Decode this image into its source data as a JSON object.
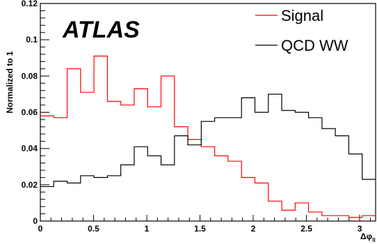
{
  "chart_data": {
    "type": "line",
    "title": "",
    "brand_label": "ATLAS",
    "xlabel": "Δφ_ll",
    "xlabel_main": "Δφ",
    "xlabel_sub": "ll",
    "ylabel": "Normalized to 1",
    "xlim": [
      0,
      3.15
    ],
    "ylim": [
      0,
      0.12
    ],
    "x_ticks": [
      "0",
      "0.5",
      "1",
      "1.5",
      "2",
      "2.5",
      "3"
    ],
    "x_tick_values": [
      0,
      0.5,
      1,
      1.5,
      2,
      2.5,
      3
    ],
    "y_ticks": [
      "0",
      "0.02",
      "0.04",
      "0.06",
      "0.08",
      "0.1",
      "0.12"
    ],
    "y_tick_values": [
      0,
      0.02,
      0.04,
      0.06,
      0.08,
      0.1,
      0.12
    ],
    "legend_position": "top-right",
    "bin_edges": [
      0,
      0.126,
      0.252,
      0.378,
      0.504,
      0.63,
      0.756,
      0.882,
      1.008,
      1.134,
      1.26,
      1.386,
      1.512,
      1.638,
      1.764,
      1.89,
      2.016,
      2.142,
      2.268,
      2.394,
      2.52,
      2.646,
      2.772,
      2.898,
      3.024,
      3.15
    ],
    "series": [
      {
        "name": "Signal",
        "color": "#ff0000",
        "values": [
          0.058,
          0.057,
          0.084,
          0.071,
          0.091,
          0.066,
          0.064,
          0.073,
          0.063,
          0.08,
          0.052,
          0.045,
          0.041,
          0.036,
          0.033,
          0.024,
          0.021,
          0.011,
          0.006,
          0.01,
          0.005,
          0.003,
          0.003,
          0.002,
          0.003
        ]
      },
      {
        "name": "QCD WW",
        "color": "#000000",
        "values": [
          0.019,
          0.022,
          0.021,
          0.025,
          0.024,
          0.025,
          0.031,
          0.041,
          0.036,
          0.031,
          0.047,
          0.042,
          0.055,
          0.057,
          0.057,
          0.068,
          0.06,
          0.07,
          0.061,
          0.06,
          0.057,
          0.051,
          0.047,
          0.037,
          0.023
        ]
      }
    ]
  },
  "colors": {
    "signal": "#ff0000",
    "background": "#000000",
    "frame": "#000000"
  }
}
